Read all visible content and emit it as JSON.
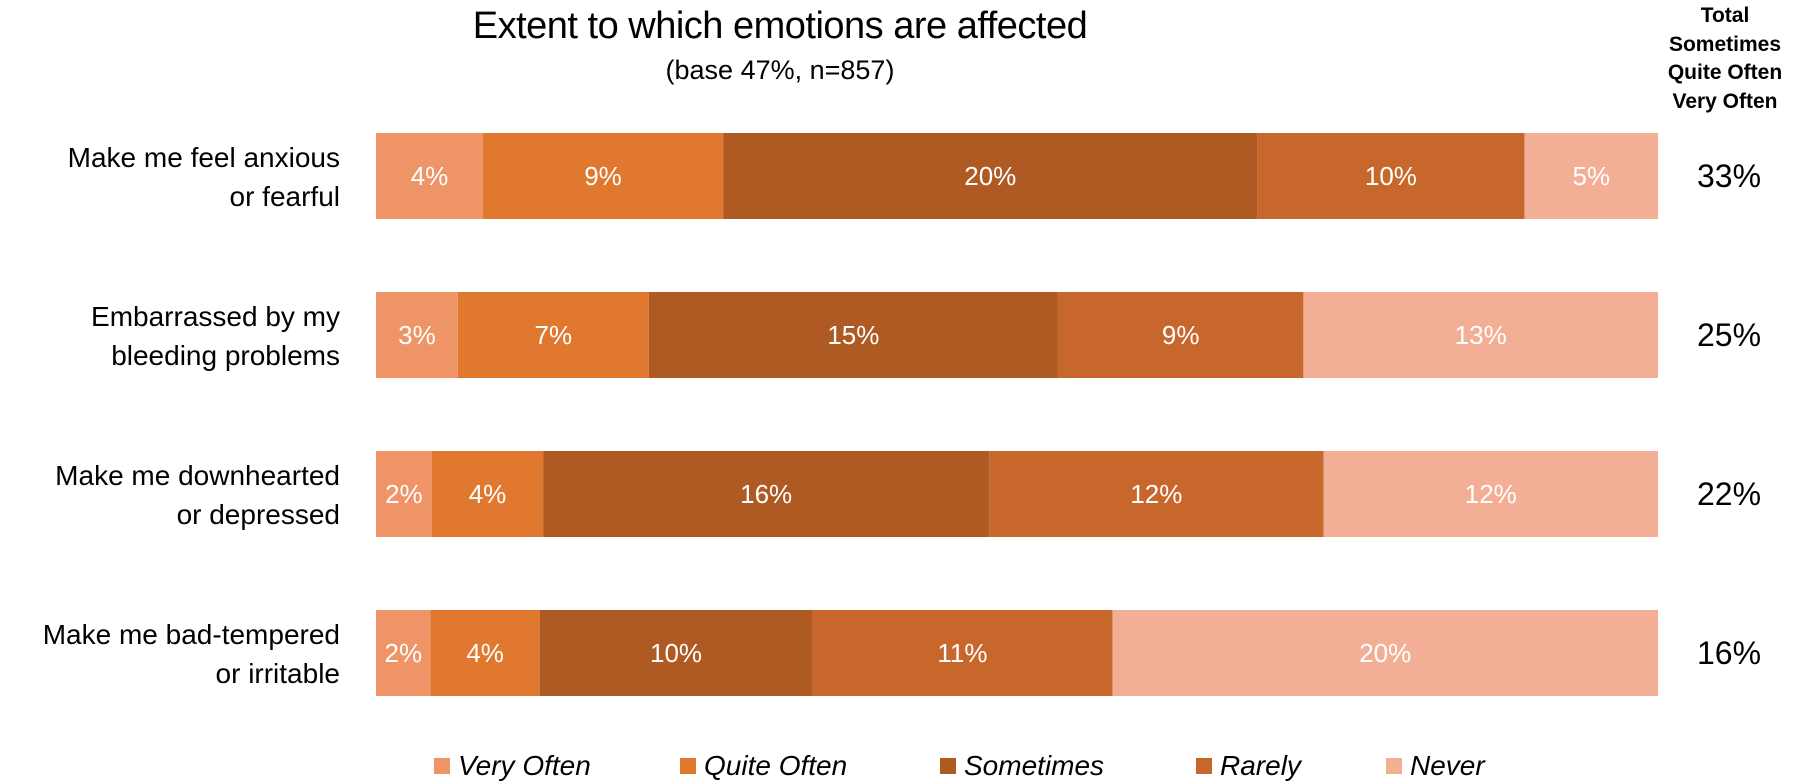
{
  "chart_data": {
    "type": "bar",
    "orientation": "horizontal",
    "stacked": true,
    "title": "Extent to which emotions are affected",
    "subtitle": "(base 47%, n=857)",
    "categories": [
      [
        "Make me feel anxious",
        "or fearful"
      ],
      [
        "Embarrassed by my",
        "bleeding problems"
      ],
      [
        "Make me downhearted",
        "or depressed"
      ],
      [
        "Make me bad-tempered",
        "or irritable"
      ]
    ],
    "series": [
      {
        "name": "Very Often",
        "color": "#EF9466",
        "values": [
          4,
          3,
          2,
          2
        ],
        "labels": [
          "4%",
          "3%",
          "2%",
          "2%"
        ]
      },
      {
        "name": "Quite Often",
        "color": "#E07830",
        "values": [
          9,
          7,
          4,
          4
        ],
        "labels": [
          "9%",
          "7%",
          "4%",
          "4%"
        ]
      },
      {
        "name": "Sometimes",
        "color": "#AF5A22",
        "values": [
          20,
          15,
          16,
          10
        ],
        "labels": [
          "20%",
          "15%",
          "16%",
          "10%"
        ]
      },
      {
        "name": "Rarely",
        "color": "#C8672C",
        "values": [
          10,
          9,
          12,
          11
        ],
        "labels": [
          "10%",
          "9%",
          "12%",
          "11%"
        ]
      },
      {
        "name": "Never",
        "color": "#F2AF95",
        "values": [
          5,
          13,
          12,
          20
        ],
        "labels": [
          "5%",
          "13%",
          "12%",
          "20%"
        ]
      }
    ],
    "totals": {
      "header": [
        "Total",
        "Sometimes",
        "Quite Often",
        "Very Often"
      ],
      "values": [
        "33%",
        "25%",
        "22%",
        "16%"
      ]
    },
    "legend": {
      "position": "bottom"
    }
  }
}
